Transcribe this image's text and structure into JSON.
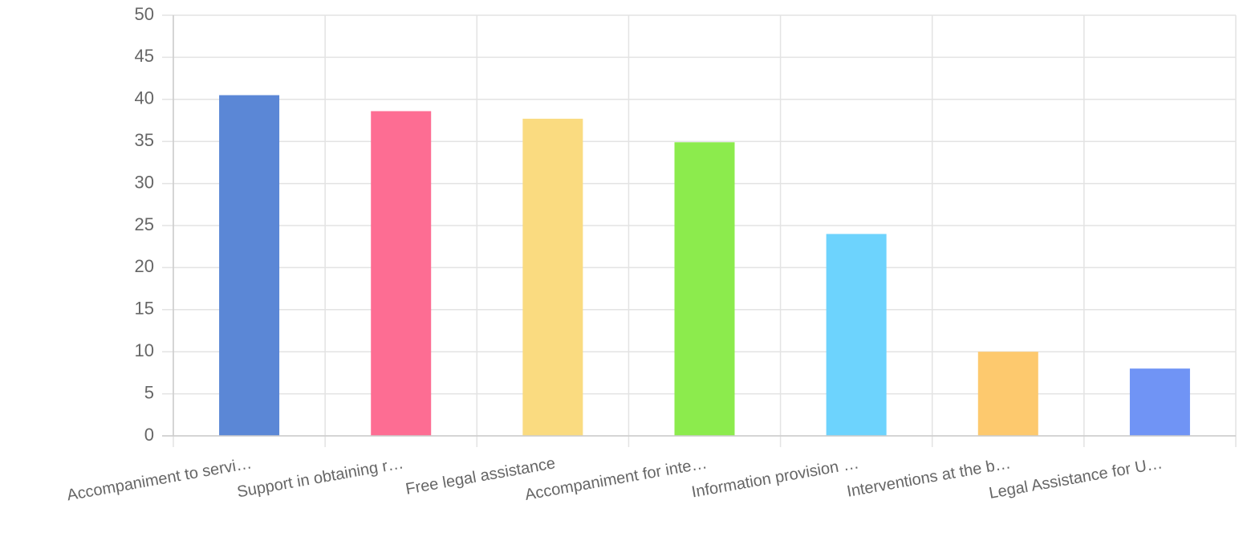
{
  "chart_data": {
    "type": "bar",
    "categories": [
      "Accompaniment to servi…",
      "Support in obtaining r…",
      "Free legal assistance",
      "Accompaniment for inte…",
      "Information provision …",
      "Interventions at the b…",
      "Legal Assistance for U…"
    ],
    "values": [
      40.5,
      38.6,
      37.7,
      34.9,
      24.0,
      10.0,
      8.0
    ],
    "colors": [
      "#5b87d6",
      "#fd6d93",
      "#fadb80",
      "#8ceb4d",
      "#6dd3fd",
      "#fdc96e",
      "#7094f5"
    ],
    "ylim": [
      0,
      50
    ],
    "yticks": [
      "0",
      "5",
      "10",
      "15",
      "20",
      "25",
      "30",
      "35",
      "40",
      "45",
      "50"
    ],
    "grid": true,
    "legend": "none",
    "title": "",
    "xlabel": "",
    "ylabel": ""
  }
}
